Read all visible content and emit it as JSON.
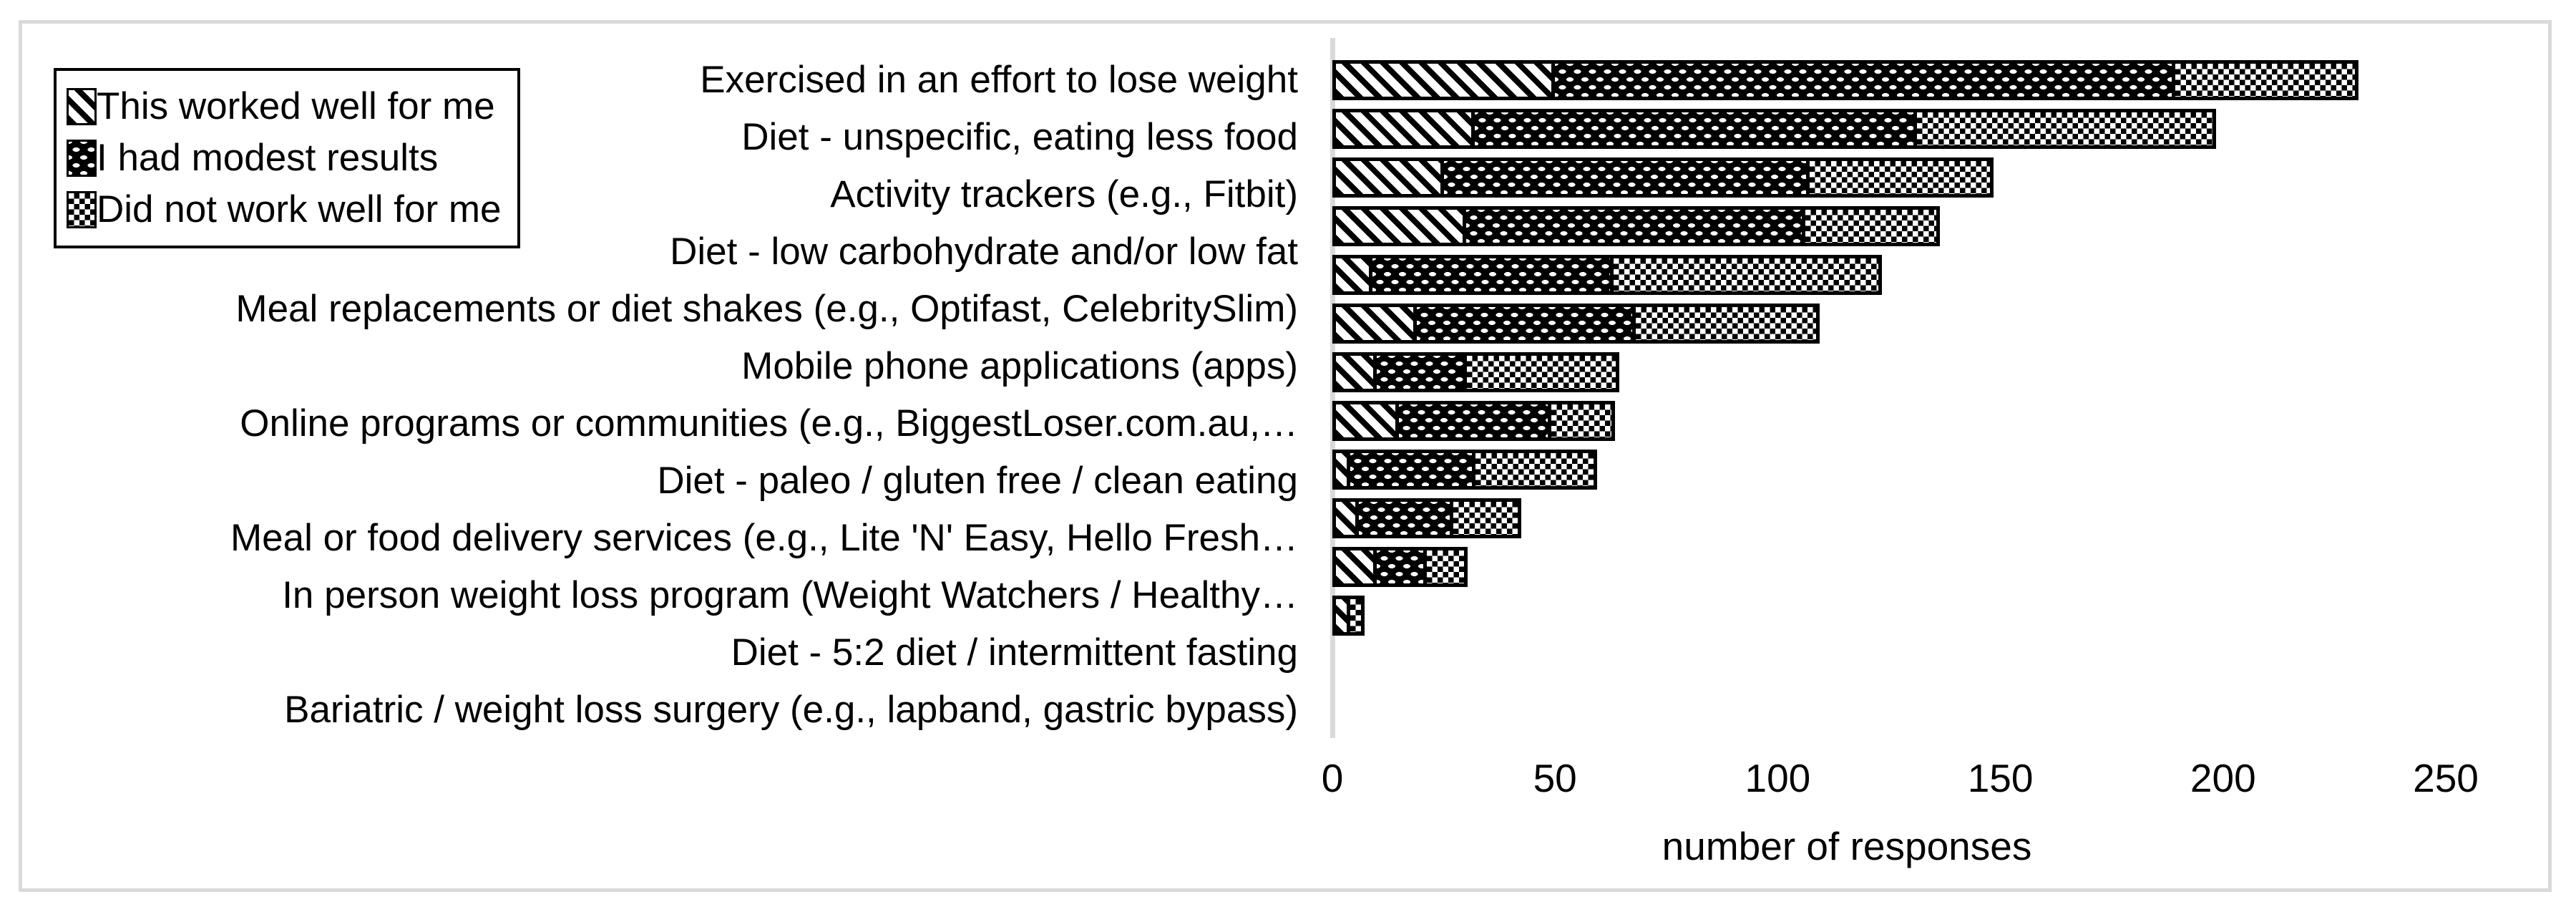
{
  "chart_data": {
    "type": "bar",
    "orientation": "horizontal",
    "stacked": true,
    "title": "",
    "xlabel": "number of responses",
    "ylabel": "",
    "xlim": [
      0,
      250
    ],
    "x_ticks": [
      0,
      50,
      100,
      150,
      200,
      250
    ],
    "grid": false,
    "legend_position": "top-left",
    "colors": {
      "bar_outline": "#000000",
      "axis_line": "#d9d9d9",
      "figure_border": "#d9d9d9",
      "text": "#000000"
    },
    "categories": [
      "Exercised in an effort to lose weight",
      "Diet - unspecific, eating less food",
      "Activity trackers (e.g., Fitbit)",
      "Diet - low carbohydrate and/or low fat",
      "Meal replacements or diet shakes (e.g., Optifast, CelebritySlim)",
      "Mobile phone applications (apps)",
      "Online programs or communities (e.g., BiggestLoser.com.au,…",
      "Diet - paleo /  gluten free / clean eating",
      "Meal or food delivery services (e.g., Lite 'N' Easy,  Hello Fresh…",
      "In person weight loss program (Weight Watchers / Healthy…",
      "Diet - 5:2 diet / intermittent fasting",
      "Bariatric / weight loss surgery (e.g., lapband, gastric bypass)"
    ],
    "series": [
      {
        "name": "This worked well for me",
        "pattern": "diagonal-hatch",
        "values": [
          50,
          32,
          25,
          30,
          9,
          19,
          10,
          15,
          4,
          6,
          10,
          4
        ]
      },
      {
        "name": "I had modest results",
        "pattern": "white-dots-on-black",
        "values": [
          140,
          100,
          83,
          77,
          55,
          50,
          21,
          35,
          29,
          22,
          12,
          0
        ]
      },
      {
        "name": "Did not work well for me",
        "pattern": "checkerboard",
        "values": [
          42,
          68,
          42,
          31,
          61,
          42,
          35,
          15,
          28,
          16,
          10,
          4
        ]
      }
    ],
    "totals": [
      232,
      200,
      150,
      138,
      125,
      111,
      66,
      65,
      61,
      44,
      32,
      8
    ]
  }
}
